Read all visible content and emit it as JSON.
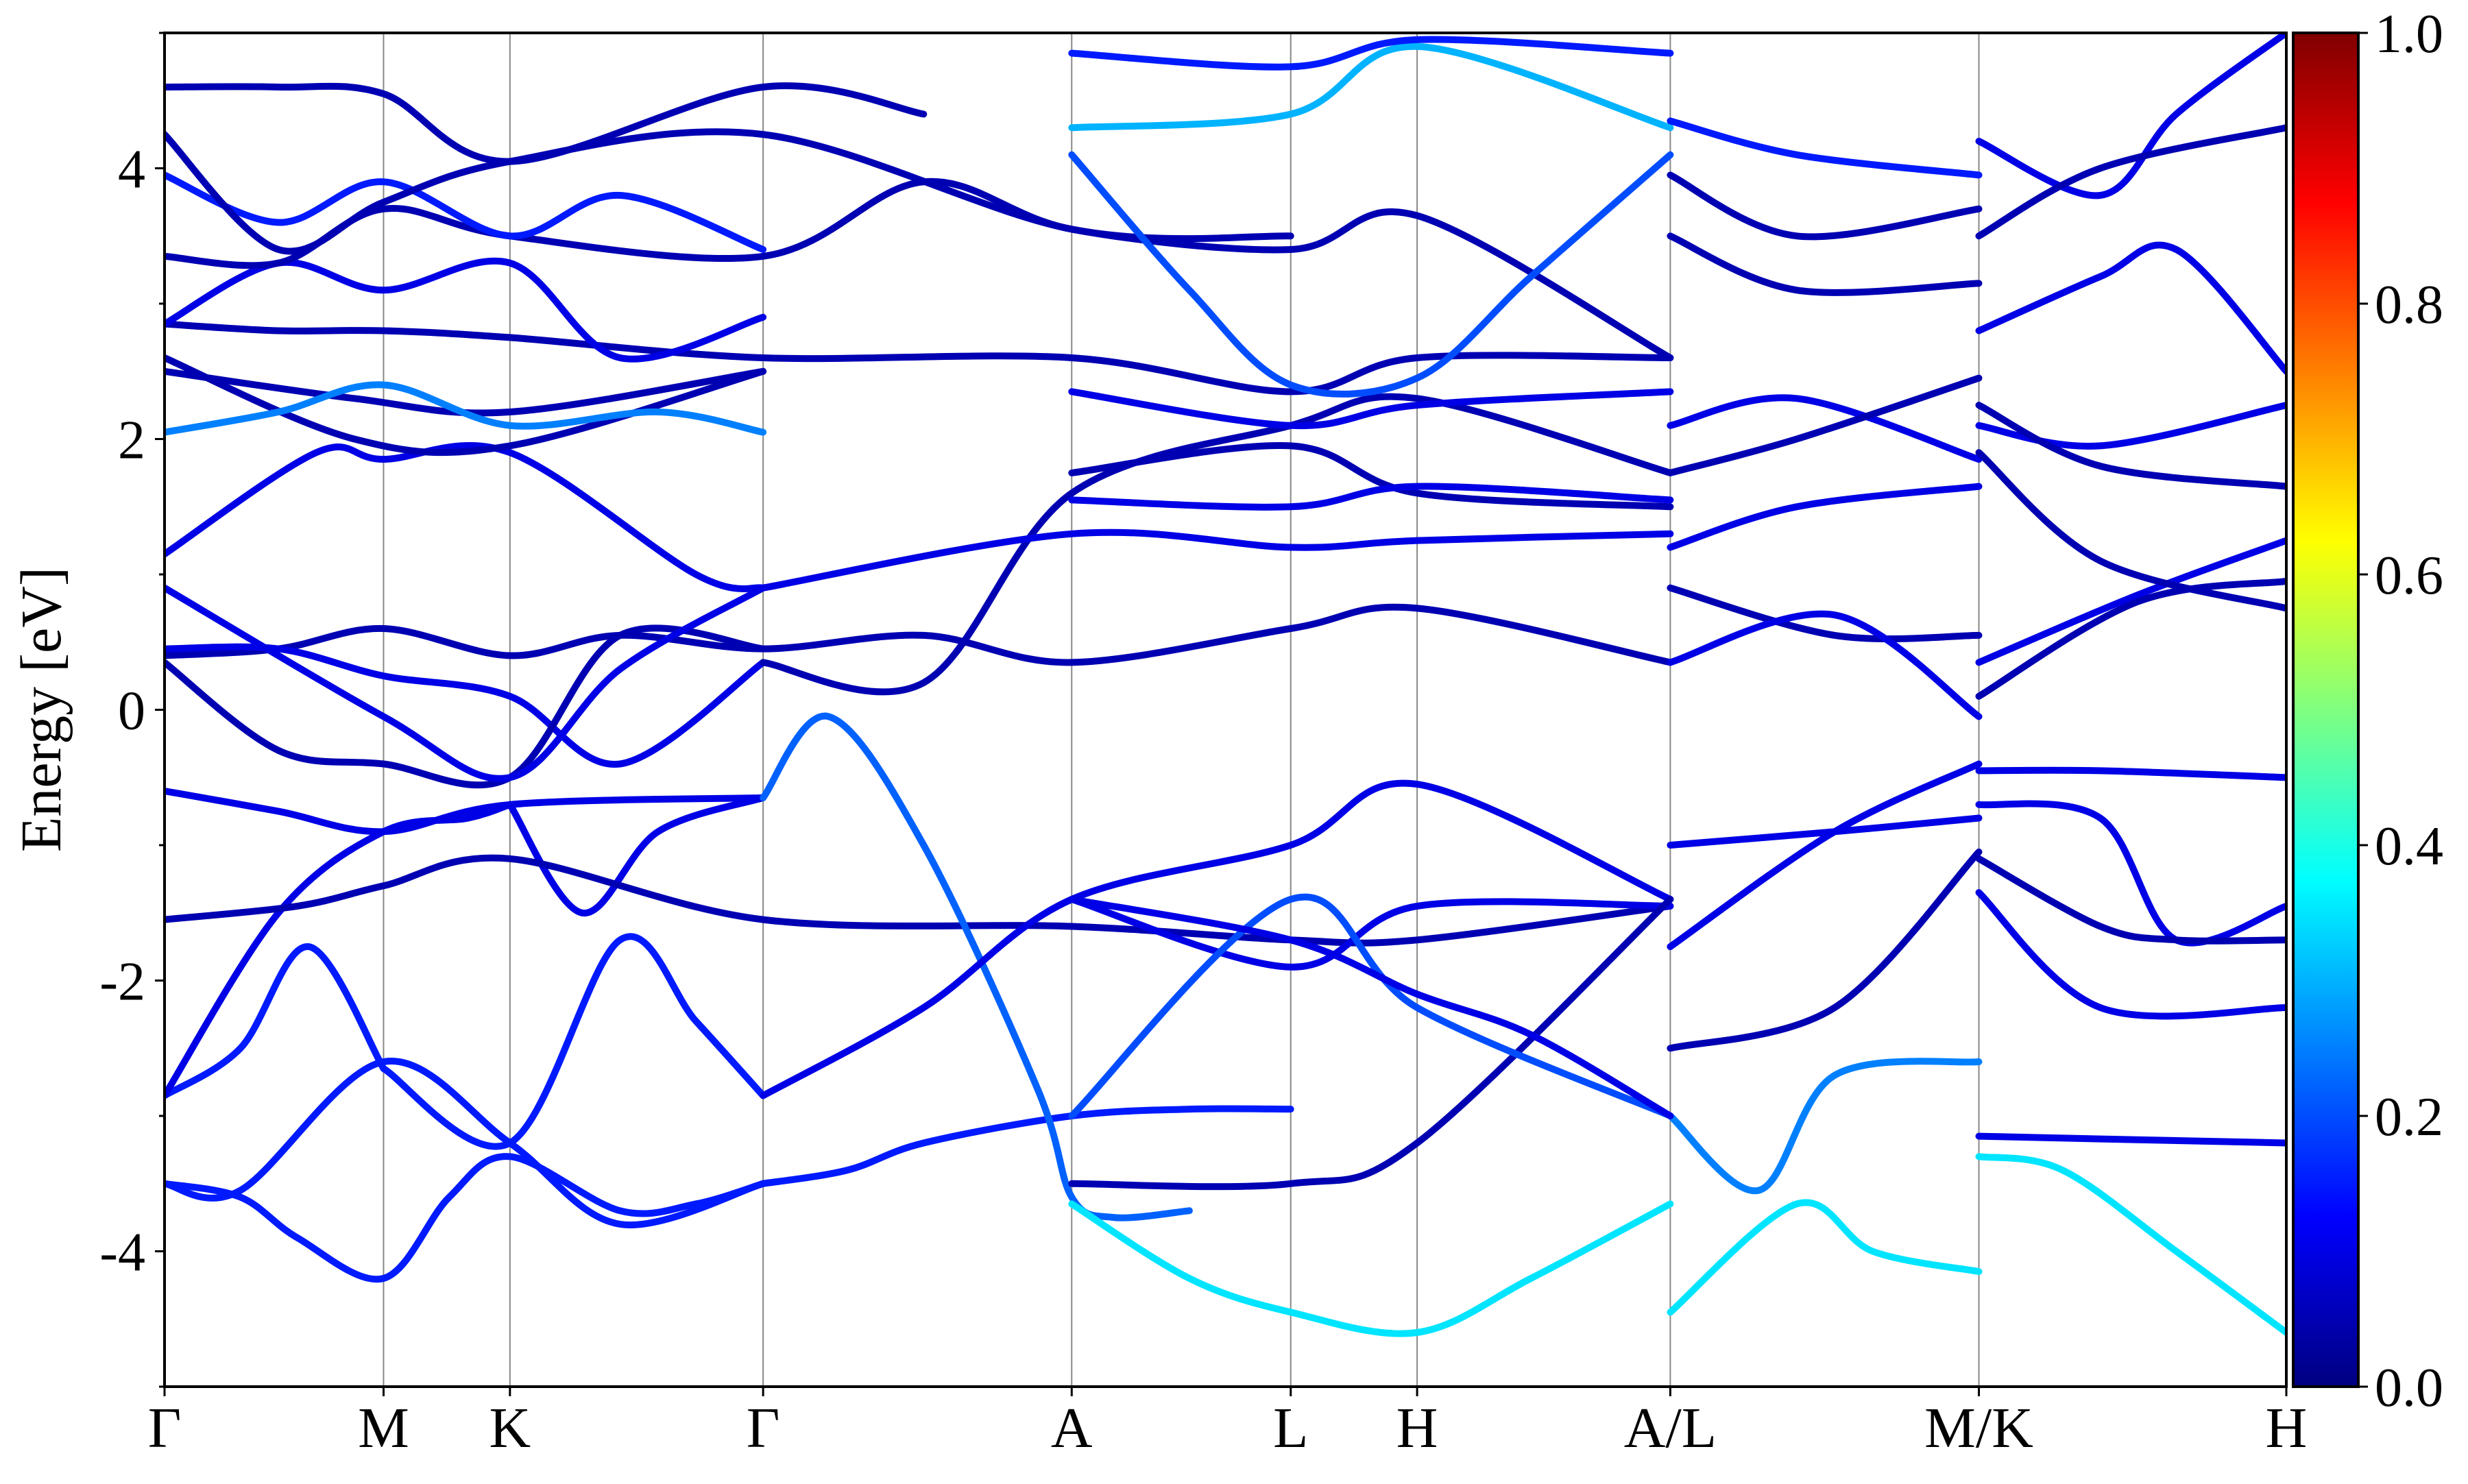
{
  "chart_data": {
    "type": "line",
    "subtype": "band-structure",
    "title": "",
    "xlabel": "",
    "ylabel": "Energy [eV]",
    "ylim": [
      -5,
      5
    ],
    "yticks": [
      {
        "value": -4,
        "label": "-4"
      },
      {
        "value": -2,
        "label": "-2"
      },
      {
        "value": 0,
        "label": "0"
      },
      {
        "value": 2,
        "label": "2"
      },
      {
        "value": 4,
        "label": "4"
      }
    ],
    "xticks": [
      {
        "label": "Γ",
        "x": 0.0
      },
      {
        "label": "M",
        "x": 0.577
      },
      {
        "label": "K",
        "x": 0.91
      },
      {
        "label": "Γ",
        "x": 1.577
      },
      {
        "label": "A",
        "x": 2.39
      },
      {
        "label": "L",
        "x": 2.967
      },
      {
        "label": "H",
        "x": 3.3
      },
      {
        "label": "A/L",
        "x": 3.967
      },
      {
        "label": "M/K",
        "x": 4.78
      },
      {
        "label": "H",
        "x": 5.59
      }
    ],
    "xlim": [
      0,
      5.59
    ],
    "gridlines": "vertical at high-symmetry points",
    "colorbar": {
      "colormap": "jet",
      "range": [
        0.0,
        1.0
      ],
      "ticks": [
        "0.0",
        "0.2",
        "0.4",
        "0.6",
        "0.8",
        "1.0"
      ]
    },
    "series": [
      {
        "w": 0.15,
        "x": [
          0,
          0.2,
          0.35,
          0.577,
          0.75,
          0.91,
          1.2,
          1.4,
          1.577
        ],
        "y": [
          -3.5,
          -3.6,
          -3.9,
          -4.2,
          -3.6,
          -3.3,
          -3.7,
          -3.65,
          -3.5
        ]
      },
      {
        "w": 0.15,
        "x": [
          0,
          0.2,
          0.577,
          0.91,
          1.2,
          1.577
        ],
        "y": [
          -3.5,
          -3.55,
          -2.6,
          -3.2,
          -3.8,
          -3.5
        ]
      },
      {
        "w": 0.15,
        "x": [
          0,
          0.2,
          0.38,
          0.577
        ],
        "y": [
          -2.85,
          -2.5,
          -1.75,
          -2.65
        ]
      },
      {
        "w": 0.15,
        "x": [
          0.577,
          0.91,
          1.2,
          1.4,
          1.577
        ],
        "y": [
          -2.65,
          -3.2,
          -1.7,
          -2.3,
          -2.85
        ]
      },
      {
        "w": 0.15,
        "x": [
          1.577,
          1.8,
          2.0,
          2.39,
          2.7,
          2.967
        ],
        "y": [
          -3.5,
          -3.4,
          -3.2,
          -3.0,
          -2.95,
          -2.95
        ]
      },
      {
        "w": 0.1,
        "x": [
          0,
          0.3,
          0.577,
          0.8,
          0.91
        ],
        "y": [
          -2.85,
          -1.5,
          -0.9,
          -0.8,
          -0.7
        ]
      },
      {
        "w": 0.1,
        "x": [
          0.91,
          1.1,
          1.3,
          1.577
        ],
        "y": [
          -0.7,
          -1.5,
          -0.9,
          -0.65
        ]
      },
      {
        "w": 0.05,
        "x": [
          0,
          0.35,
          0.577,
          0.91,
          1.577,
          2.39,
          2.967,
          3.3,
          3.967
        ],
        "y": [
          -1.55,
          -1.45,
          -1.3,
          -1.1,
          -1.55,
          -1.6,
          -1.7,
          -1.7,
          -1.45
        ]
      },
      {
        "w": 0.1,
        "x": [
          0,
          0.3,
          0.577,
          0.91,
          1.577
        ],
        "y": [
          -0.6,
          -0.75,
          -0.9,
          -0.7,
          -0.65
        ]
      },
      {
        "w": 0.22,
        "x": [
          1.577,
          1.75,
          2.0,
          2.3,
          2.39,
          2.5,
          2.7
        ],
        "y": [
          -0.65,
          -0.05,
          -1.0,
          -2.8,
          -3.6,
          -3.75,
          -3.7
        ]
      },
      {
        "w": 0.35,
        "x": [
          2.39,
          2.7,
          2.967,
          3.3,
          3.6,
          3.967
        ],
        "y": [
          -3.65,
          -4.2,
          -4.45,
          -4.6,
          -4.2,
          -3.65
        ]
      },
      {
        "w": 0.35,
        "x": [
          3.967,
          4.3,
          4.5,
          4.78
        ],
        "y": [
          -4.45,
          -3.65,
          -4.0,
          -4.15
        ]
      },
      {
        "w": 0.35,
        "x": [
          4.78,
          5.0,
          5.3,
          5.59
        ],
        "y": [
          -3.3,
          -3.4,
          -4.0,
          -4.6
        ]
      },
      {
        "w": 0.25,
        "x": [
          3.967,
          4.2,
          4.4,
          4.78
        ],
        "y": [
          -3.0,
          -3.55,
          -2.7,
          -2.6
        ]
      },
      {
        "w": 0.1,
        "x": [
          4.78,
          5.59
        ],
        "y": [
          -3.15,
          -3.2
        ]
      },
      {
        "w": 0.1,
        "x": [
          1.577,
          2.0,
          2.39,
          2.967,
          3.3,
          3.967
        ],
        "y": [
          -2.85,
          -2.2,
          -1.4,
          -1.0,
          -0.55,
          -1.4
        ]
      },
      {
        "w": 0.1,
        "x": [
          2.39,
          2.967,
          3.3,
          3.967
        ],
        "y": [
          -1.4,
          -1.9,
          -1.45,
          -1.45
        ]
      },
      {
        "w": 0.05,
        "x": [
          2.39,
          2.967,
          3.3,
          3.967
        ],
        "y": [
          -3.5,
          -3.5,
          -3.2,
          -1.4
        ]
      },
      {
        "w": 0.2,
        "x": [
          2.39,
          2.967,
          3.3,
          3.967
        ],
        "y": [
          -3.0,
          -1.4,
          -2.2,
          -3.0
        ]
      },
      {
        "w": 0.1,
        "x": [
          2.39,
          2.967,
          3.3,
          3.6,
          3.967
        ],
        "y": [
          -1.4,
          -1.7,
          -2.1,
          -2.4,
          -3.0
        ]
      },
      {
        "w": 0.1,
        "x": [
          3.967,
          4.4,
          4.78
        ],
        "y": [
          -1.0,
          -0.9,
          -0.8
        ]
      },
      {
        "w": 0.1,
        "x": [
          3.967,
          4.4,
          4.78
        ],
        "y": [
          -1.75,
          -0.9,
          -0.4
        ]
      },
      {
        "w": 0.05,
        "x": [
          3.967,
          4.4,
          4.78
        ],
        "y": [
          -2.5,
          -2.2,
          -1.05
        ]
      },
      {
        "w": 0.1,
        "x": [
          4.78,
          5.1,
          5.59
        ],
        "y": [
          -0.45,
          -0.45,
          -0.5
        ]
      },
      {
        "w": 0.1,
        "x": [
          4.78,
          5.1,
          5.3,
          5.59
        ],
        "y": [
          -0.7,
          -0.8,
          -1.7,
          -1.45
        ]
      },
      {
        "w": 0.05,
        "x": [
          4.78,
          5.1,
          5.3,
          5.59
        ],
        "y": [
          -1.1,
          -1.6,
          -1.7,
          -1.7
        ]
      },
      {
        "w": 0.1,
        "x": [
          4.78,
          5.1,
          5.59
        ],
        "y": [
          -1.35,
          -2.2,
          -2.2
        ]
      },
      {
        "w": 0.05,
        "x": [
          0,
          0.3,
          0.577,
          0.91,
          1.2,
          1.577,
          2.0,
          2.39,
          2.967,
          3.3,
          3.967
        ],
        "y": [
          0.4,
          0.45,
          0.6,
          0.4,
          0.55,
          0.45,
          0.55,
          0.35,
          0.6,
          0.75,
          0.35
        ]
      },
      {
        "w": 0.1,
        "x": [
          0,
          0.3,
          0.577,
          0.91,
          1.2,
          1.577
        ],
        "y": [
          0.45,
          0.45,
          0.25,
          0.1,
          -0.4,
          0.35
        ]
      },
      {
        "w": 0.05,
        "x": [
          0,
          0.3,
          0.577,
          0.91,
          1.2,
          1.577
        ],
        "y": [
          0.35,
          -0.3,
          -0.4,
          -0.5,
          0.55,
          0.45
        ]
      },
      {
        "w": 0.1,
        "x": [
          0,
          0.577,
          0.91,
          1.2,
          1.577
        ],
        "y": [
          0.9,
          -0.05,
          -0.5,
          0.3,
          0.9
        ]
      },
      {
        "w": 0.05,
        "x": [
          1.577,
          2.0,
          2.39,
          2.967,
          3.3,
          3.967
        ],
        "y": [
          0.35,
          0.2,
          1.6,
          2.1,
          2.3,
          1.75
        ]
      },
      {
        "w": 0.1,
        "x": [
          1.577,
          2.39,
          2.967,
          3.3,
          3.967
        ],
        "y": [
          0.9,
          1.3,
          1.2,
          1.25,
          1.3
        ]
      },
      {
        "w": 0.05,
        "x": [
          3.967,
          4.4,
          4.78
        ],
        "y": [
          0.9,
          0.55,
          0.55
        ]
      },
      {
        "w": 0.1,
        "x": [
          3.967,
          4.4,
          4.78
        ],
        "y": [
          0.35,
          0.7,
          -0.05
        ]
      },
      {
        "w": 0.1,
        "x": [
          4.78,
          5.2,
          5.59
        ],
        "y": [
          0.35,
          0.85,
          1.25
        ]
      },
      {
        "w": 0.05,
        "x": [
          4.78,
          5.2,
          5.59
        ],
        "y": [
          0.1,
          0.8,
          0.95
        ]
      },
      {
        "w": 0.1,
        "x": [
          0,
          0.4,
          0.577,
          0.91,
          1.4,
          1.577
        ],
        "y": [
          1.15,
          1.9,
          1.85,
          1.9,
          1.0,
          0.9
        ]
      },
      {
        "w": 0.05,
        "x": [
          0,
          0.5,
          0.91,
          1.577
        ],
        "y": [
          2.5,
          2.3,
          2.2,
          2.5
        ]
      },
      {
        "w": 0.05,
        "x": [
          0,
          0.5,
          0.91,
          1.577
        ],
        "y": [
          2.6,
          2.0,
          1.95,
          2.5
        ]
      },
      {
        "w": 0.25,
        "x": [
          0,
          0.3,
          0.577,
          0.91,
          1.3,
          1.577
        ],
        "y": [
          2.05,
          2.2,
          2.4,
          2.1,
          2.2,
          2.05
        ]
      },
      {
        "w": 0.05,
        "x": [
          0,
          0.3,
          0.577,
          0.91,
          1.577,
          2.39,
          2.967,
          3.3,
          3.967
        ],
        "y": [
          2.85,
          2.8,
          2.8,
          2.75,
          2.6,
          2.6,
          2.35,
          2.6,
          2.6
        ]
      },
      {
        "w": 0.1,
        "x": [
          0,
          0.3,
          0.577,
          0.91,
          1.2,
          1.577
        ],
        "y": [
          2.85,
          3.3,
          3.1,
          3.3,
          2.6,
          2.9
        ]
      },
      {
        "w": 0.05,
        "x": [
          0,
          0.3,
          0.577,
          0.91,
          1.577,
          2.0,
          2.39,
          2.967,
          3.3,
          3.967
        ],
        "y": [
          3.35,
          3.3,
          3.7,
          3.5,
          3.35,
          3.9,
          3.55,
          3.4,
          3.65,
          2.6
        ]
      },
      {
        "w": 0.15,
        "x": [
          0,
          0.3,
          0.577,
          0.91,
          1.2,
          1.577
        ],
        "y": [
          3.95,
          3.6,
          3.9,
          3.5,
          3.8,
          3.4
        ]
      },
      {
        "w": 0.05,
        "x": [
          0,
          0.3,
          0.577,
          0.91,
          1.577,
          2.39,
          2.967
        ],
        "y": [
          4.25,
          3.4,
          3.75,
          4.05,
          4.25,
          3.55,
          3.5
        ]
      },
      {
        "w": 0.05,
        "x": [
          0,
          0.3,
          0.577,
          0.91,
          1.577,
          2.0
        ],
        "y": [
          4.6,
          4.6,
          4.55,
          4.05,
          4.6,
          4.4
        ]
      },
      {
        "w": 0.3,
        "x": [
          2.39,
          2.967,
          3.3,
          3.967
        ],
        "y": [
          4.3,
          4.4,
          4.9,
          4.3
        ]
      },
      {
        "w": 0.15,
        "x": [
          2.39,
          2.967,
          3.3,
          3.967
        ],
        "y": [
          4.85,
          4.75,
          4.95,
          4.85
        ]
      },
      {
        "w": 0.2,
        "x": [
          2.39,
          2.7,
          2.967,
          3.3,
          3.6,
          3.967
        ],
        "y": [
          4.1,
          3.1,
          2.4,
          2.45,
          3.2,
          4.1
        ]
      },
      {
        "w": 0.1,
        "x": [
          2.39,
          2.967,
          3.3,
          3.967
        ],
        "y": [
          2.35,
          2.1,
          2.25,
          2.35
        ]
      },
      {
        "w": 0.05,
        "x": [
          2.39,
          2.967,
          3.3,
          3.967
        ],
        "y": [
          1.75,
          1.95,
          1.6,
          1.5
        ]
      },
      {
        "w": 0.1,
        "x": [
          2.39,
          2.967,
          3.3,
          3.967
        ],
        "y": [
          1.55,
          1.5,
          1.65,
          1.55
        ]
      },
      {
        "w": 0.05,
        "x": [
          3.967,
          4.3,
          4.78
        ],
        "y": [
          3.95,
          3.5,
          3.7
        ]
      },
      {
        "w": 0.15,
        "x": [
          3.967,
          4.3,
          4.78
        ],
        "y": [
          4.35,
          4.1,
          3.95
        ]
      },
      {
        "w": 0.05,
        "x": [
          3.967,
          4.3,
          4.78
        ],
        "y": [
          3.5,
          3.1,
          3.15
        ]
      },
      {
        "w": 0.1,
        "x": [
          3.967,
          4.3,
          4.78
        ],
        "y": [
          2.1,
          2.3,
          1.85
        ]
      },
      {
        "w": 0.05,
        "x": [
          3.967,
          4.3,
          4.78
        ],
        "y": [
          1.75,
          2.0,
          2.45
        ]
      },
      {
        "w": 0.1,
        "x": [
          3.967,
          4.3,
          4.78
        ],
        "y": [
          1.2,
          1.5,
          1.65
        ]
      },
      {
        "w": 0.1,
        "x": [
          4.78,
          5.1,
          5.3,
          5.59
        ],
        "y": [
          4.2,
          3.8,
          4.4,
          5.0
        ]
      },
      {
        "w": 0.05,
        "x": [
          4.78,
          5.1,
          5.59
        ],
        "y": [
          3.5,
          4.0,
          4.3
        ]
      },
      {
        "w": 0.1,
        "x": [
          4.78,
          5.1,
          5.3,
          5.59
        ],
        "y": [
          2.8,
          3.2,
          3.4,
          2.5
        ]
      },
      {
        "w": 0.1,
        "x": [
          4.78,
          5.1,
          5.59
        ],
        "y": [
          2.1,
          1.95,
          2.25
        ]
      },
      {
        "w": 0.05,
        "x": [
          4.78,
          5.1,
          5.59
        ],
        "y": [
          1.9,
          1.1,
          0.75
        ]
      },
      {
        "w": 0.05,
        "x": [
          4.78,
          5.1,
          5.59
        ],
        "y": [
          2.25,
          1.8,
          1.65
        ]
      }
    ]
  }
}
